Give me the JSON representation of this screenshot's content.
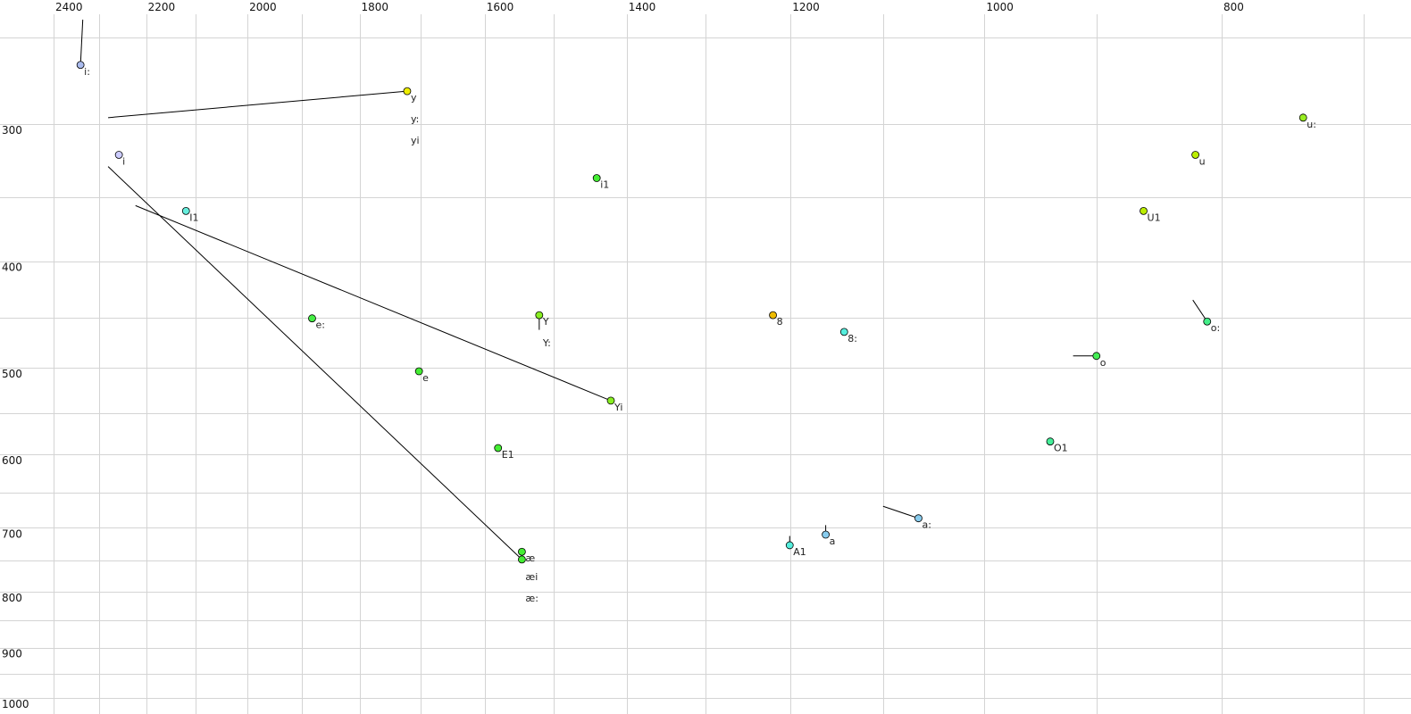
{
  "chart_data": {
    "type": "scatter",
    "title": "",
    "xlabel": "",
    "ylabel": "",
    "x_scale": "log",
    "y_scale": "log",
    "x_reversed": true,
    "xlim": [
      2400,
      700
    ],
    "ylim": [
      250,
      1000
    ],
    "grid": true,
    "x_gridlines": [
      2400,
      2300,
      2200,
      2100,
      2000,
      1900,
      1800,
      1700,
      1600,
      1500,
      1400,
      1300,
      1200,
      1100,
      1000,
      900,
      800,
      700
    ],
    "y_gridlines": [
      250,
      300,
      350,
      400,
      450,
      500,
      550,
      600,
      650,
      700,
      750,
      800,
      850,
      900,
      950,
      1000
    ],
    "x_ticks": [
      "2400",
      "2200",
      "2000",
      "1800",
      "1600",
      "1400",
      "1200",
      "1000",
      "800"
    ],
    "y_ticks": [
      "300",
      "400",
      "500",
      "600",
      "700",
      "800",
      "900",
      "1000"
    ],
    "points": [
      {
        "label": "i:",
        "F2": 2340,
        "F1": 265,
        "color": "#aabbee",
        "track": [
          2335,
          241
        ]
      },
      {
        "label": "y",
        "F2": 1721,
        "F1": 280,
        "color": "#eeee00",
        "track": [
          2280,
          296
        ],
        "extra_labels": [
          "y:",
          "yi"
        ]
      },
      {
        "label": "i",
        "F2": 2257,
        "F1": 320,
        "color": "#ccccff"
      },
      {
        "label": "I1",
        "F2": 2119,
        "F1": 360,
        "color": "#66eedd"
      },
      {
        "label": "i1",
        "F2": 1440,
        "F1": 336,
        "color": "#44ee33"
      },
      {
        "label": "e:",
        "F2": 1882,
        "F1": 451,
        "color": "#44ee44"
      },
      {
        "label": "Y",
        "F2": 1520,
        "F1": 448,
        "color": "#88ee22",
        "track": [
          1520,
          462
        ],
        "extra_labels": [
          "Y:"
        ]
      },
      {
        "label": "Yi",
        "F2": 1421,
        "F1": 536,
        "color": "#88ee22",
        "track": [
          2222,
          356
        ]
      },
      {
        "label": "e",
        "F2": 1702,
        "F1": 504,
        "color": "#44ee33"
      },
      {
        "label": "E1",
        "F2": 1580,
        "F1": 592,
        "color": "#44ee33"
      },
      {
        "label": "æ",
        "F2": 1545,
        "F1": 736,
        "color": "#44ee33"
      },
      {
        "label": "æi",
        "F2": 1545,
        "F1": 748,
        "color": "#44ee33",
        "track": [
          2280,
          328
        ],
        "extra_labels": [
          "æ:"
        ]
      },
      {
        "label": "8",
        "F2": 1220,
        "F1": 448,
        "color": "#eebb00"
      },
      {
        "label": "8:",
        "F2": 1141,
        "F1": 464,
        "color": "#55eedd"
      },
      {
        "label": "A1",
        "F2": 1201,
        "F1": 726,
        "color": "#55eedd",
        "track": [
          1201,
          712
        ]
      },
      {
        "label": "a",
        "F2": 1161,
        "F1": 710,
        "color": "#88ccee",
        "track": [
          1161,
          696
        ]
      },
      {
        "label": "a:",
        "F2": 1064,
        "F1": 686,
        "color": "#88ccee",
        "track": [
          1100,
          669
        ]
      },
      {
        "label": "O1",
        "F2": 940,
        "F1": 584,
        "color": "#44ee99"
      },
      {
        "label": "o",
        "F2": 900,
        "F1": 488,
        "color": "#44ee55",
        "track": [
          920,
          488
        ]
      },
      {
        "label": "o:",
        "F2": 811,
        "F1": 454,
        "color": "#44ee88",
        "track": [
          822,
          434
        ]
      },
      {
        "label": "U1",
        "F2": 861,
        "F1": 360,
        "color": "#bbee00"
      },
      {
        "label": "u",
        "F2": 820,
        "F1": 320,
        "color": "#bbee00"
      },
      {
        "label": "u:",
        "F2": 741,
        "F1": 296,
        "color": "#99ee22"
      }
    ]
  }
}
